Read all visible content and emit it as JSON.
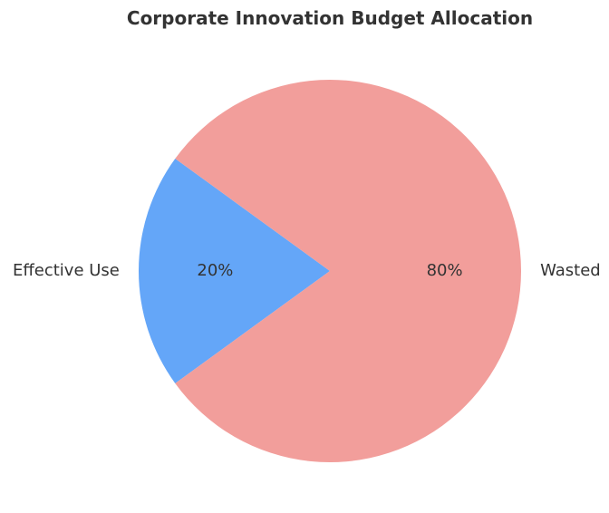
{
  "chart_data": {
    "type": "pie",
    "title": "Corporate Innovation Budget Allocation",
    "slices": [
      {
        "label": "Effective Use",
        "value": 20,
        "pct_label": "20%",
        "color": "#64a6f8"
      },
      {
        "label": "Wasted",
        "value": 80,
        "pct_label": "80%",
        "color": "#f29e9b"
      }
    ],
    "start_angle_deg": 144,
    "direction": "counterclockwise"
  }
}
